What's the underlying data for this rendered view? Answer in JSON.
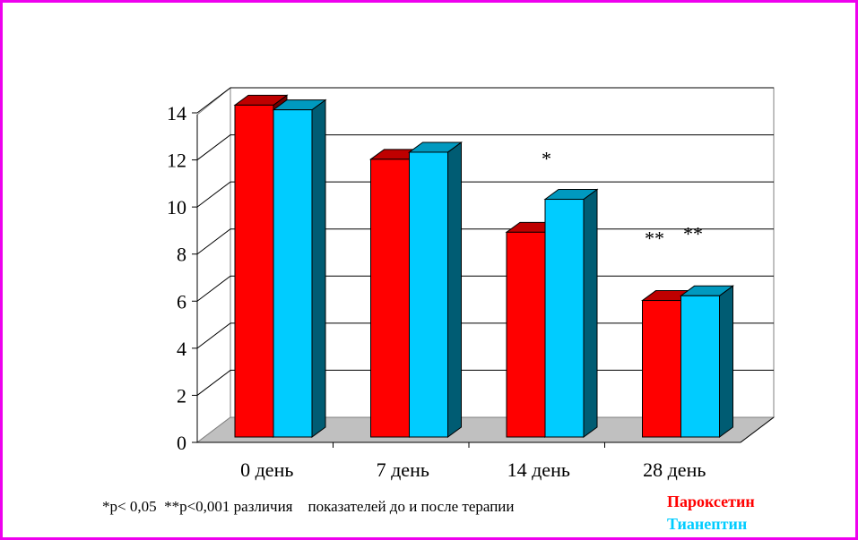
{
  "chart_data": {
    "type": "bar",
    "categories": [
      "0 день",
      "7 день",
      "14 день",
      "28 день"
    ],
    "series": [
      {
        "name": "Пароксетин",
        "values": [
          14.1,
          11.8,
          8.7,
          5.8
        ],
        "color": "#ff0000"
      },
      {
        "name": "Тианептин",
        "values": [
          13.9,
          12.1,
          10.1,
          6.0
        ],
        "color": "#00ccff"
      }
    ],
    "ylim": [
      0,
      14
    ],
    "yticks": [
      0,
      2,
      4,
      6,
      8,
      10,
      12,
      14
    ],
    "grid": true,
    "legend_position": "bottom-right",
    "annotations": [
      {
        "category": "14 день",
        "series": "Тианептин",
        "text": "*"
      },
      {
        "category": "28 день",
        "series": "Пароксетин",
        "text": "**"
      },
      {
        "category": "28 день",
        "series": "Тианептин",
        "text": "**"
      }
    ]
  },
  "footnote": "*p< 0,05  **p<0,001 различия    показателей до и после терапии",
  "legend": [
    {
      "label": "Пароксетин",
      "color": "#ff0000"
    },
    {
      "label": "Тианептин",
      "color": "#00ccff"
    }
  ]
}
